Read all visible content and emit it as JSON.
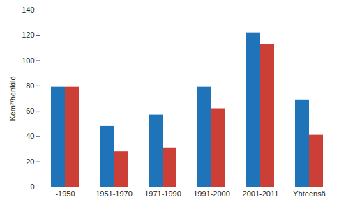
{
  "chart_data": {
    "type": "bar",
    "categories": [
      "-1950",
      "1951-1970",
      "1971-1990",
      "1991-2000",
      "2001-2011",
      "Yhteensä"
    ],
    "series": [
      {
        "color": "#1f74b9",
        "values": [
          79,
          48,
          57,
          79,
          122,
          69
        ]
      },
      {
        "color": "#cb3f36",
        "values": [
          79,
          28,
          31,
          62,
          113,
          41
        ]
      }
    ],
    "y_label": "Kem²/henkilö",
    "ylim": [
      0,
      140
    ],
    "yticks": [
      0,
      20,
      40,
      60,
      80,
      100,
      120,
      140
    ],
    "grid": false
  }
}
